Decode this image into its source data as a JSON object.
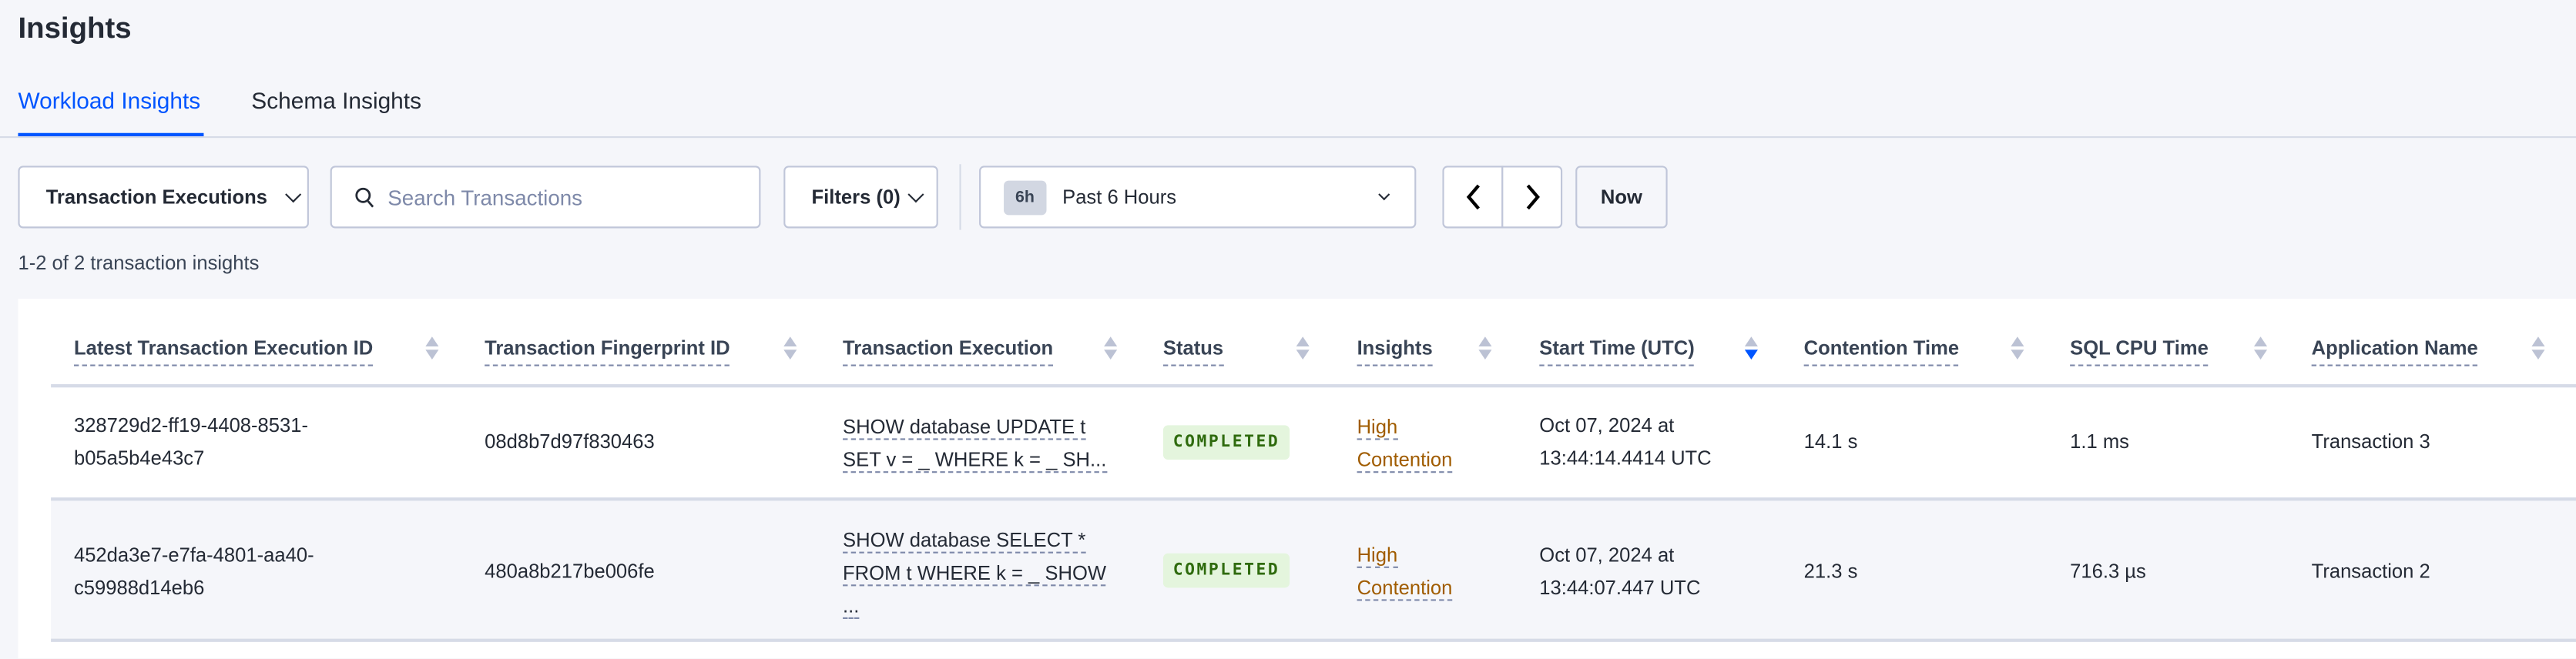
{
  "page": {
    "title": "Insights"
  },
  "tabs": [
    {
      "label": "Workload Insights",
      "active": true
    },
    {
      "label": "Schema Insights",
      "active": false
    }
  ],
  "controls": {
    "view_select": "Transaction Executions",
    "search_placeholder": "Search Transactions",
    "filters_label": "Filters (0)",
    "time_pill": "6h",
    "time_range": "Past 6 Hours",
    "now_label": "Now"
  },
  "result_count": "1-2 of 2 transaction insights",
  "table": {
    "columns": [
      "Latest Transaction Execution ID",
      "Transaction Fingerprint ID",
      "Transaction Execution",
      "Status",
      "Insights",
      "Start Time (UTC)",
      "Contention Time",
      "SQL CPU Time",
      "Application Name"
    ],
    "sorted_column": "Start Time (UTC)",
    "sort_direction": "descending",
    "rows": [
      {
        "exec_id_1": "328729d2-ff19-4408-8531-",
        "exec_id_2": "b05a5b4e43c7",
        "fingerprint": "08d8b7d97f830463",
        "query_1": "SHOW database UPDATE t",
        "query_2": "SET v = _ WHERE k = _ SH...",
        "query_3": "",
        "status": "COMPLETED",
        "insight_1": "High",
        "insight_2": "Contention",
        "start_1": "Oct 07, 2024 at",
        "start_2": "13:44:14.4414 UTC",
        "contention": "14.1 s",
        "cpu": "1.1 ms",
        "app": "Transaction 3"
      },
      {
        "exec_id_1": "452da3e7-e7fa-4801-aa40-",
        "exec_id_2": "c59988d14eb6",
        "fingerprint": "480a8b217be006fe",
        "query_1": "SHOW database SELECT *",
        "query_2": "FROM t WHERE k = _ SHOW",
        "query_3": "...",
        "status": "COMPLETED",
        "insight_1": "High",
        "insight_2": "Contention",
        "start_1": "Oct 07, 2024 at",
        "start_2": "13:44:07.447 UTC",
        "contention": "21.3 s",
        "cpu": "716.3 µs",
        "app": "Transaction 2"
      }
    ]
  },
  "colors": {
    "accent": "#0055ff",
    "insight_link": "#a05c00",
    "completed_bg": "#e4f5dd",
    "completed_text": "#2f6b0e"
  }
}
